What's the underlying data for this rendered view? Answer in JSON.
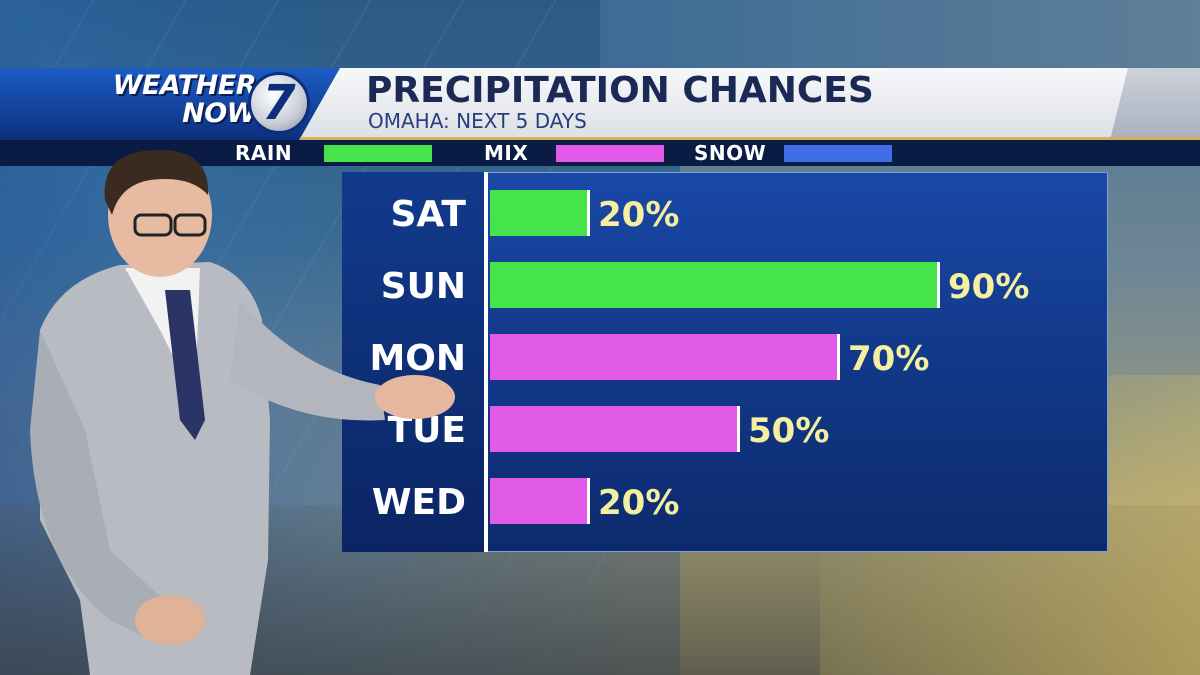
{
  "header": {
    "logo_line1": "WEATHER",
    "logo_line2": "NOW",
    "logo_number": "7",
    "title": "PRECIPITATION CHANCES",
    "subtitle": "OMAHA: NEXT 5 DAYS"
  },
  "legend": [
    {
      "label": "RAIN",
      "color": "#44e44a"
    },
    {
      "label": "MIX",
      "color": "#e15ae8"
    },
    {
      "label": "SNOW",
      "color": "#3f6fe8"
    }
  ],
  "chart_data": {
    "type": "bar",
    "orientation": "horizontal",
    "title": "PRECIPITATION CHANCES",
    "subtitle": "OMAHA: NEXT 5 DAYS",
    "categories": [
      "SAT",
      "SUN",
      "MON",
      "TUE",
      "WED"
    ],
    "values": [
      20,
      90,
      70,
      50,
      20
    ],
    "labels": [
      "20%",
      "90%",
      "70%",
      "50%",
      "20%"
    ],
    "precip_types": [
      "RAIN",
      "RAIN",
      "MIX",
      "MIX",
      "MIX"
    ],
    "unit": "%",
    "xlim": [
      0,
      100
    ],
    "grid": false,
    "legend_position": "top"
  },
  "colors": {
    "rain": "#44e44a",
    "mix": "#e15ae8",
    "snow": "#3f6fe8",
    "value_label": "#f5f0a0",
    "panel": "#123a8c"
  }
}
